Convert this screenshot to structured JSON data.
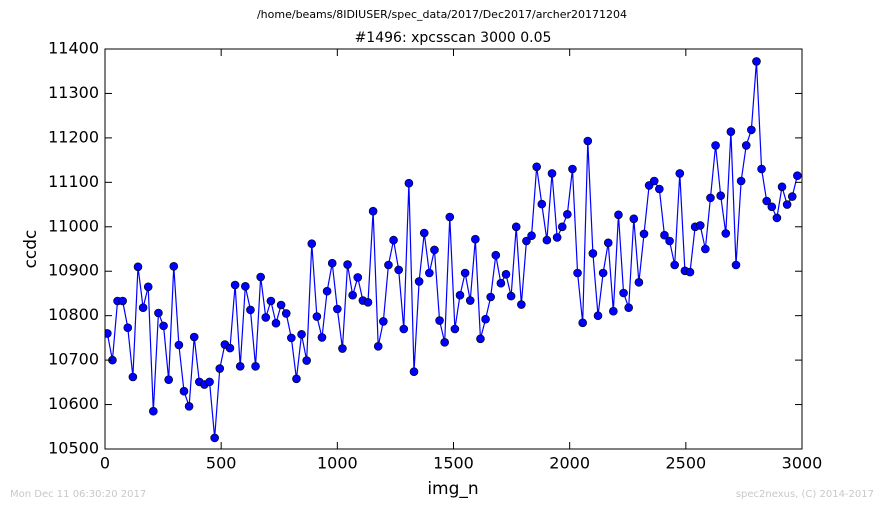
{
  "chart_data": {
    "type": "line",
    "header": "/home/beams/8IDIUSER/spec_data/2017/Dec2017/archer20171204",
    "title": "#1496: xpcsscan 3000 0.05",
    "xlabel": "img_n",
    "ylabel": "ccdc",
    "footer_left": "Mon Dec 11 06:30:20 2017",
    "footer_right": "spec2nexus, (C) 2014-2017",
    "xlim": [
      0,
      3000
    ],
    "xticks": [
      0,
      500,
      1000,
      1500,
      2000,
      2500,
      3000
    ],
    "ylim": [
      10500,
      11400
    ],
    "yticks": [
      10500,
      10600,
      10700,
      10800,
      10900,
      11000,
      11100,
      11200,
      11300,
      11400
    ],
    "x": [
      10,
      32,
      54,
      76,
      98,
      120,
      142,
      164,
      186,
      208,
      230,
      252,
      274,
      296,
      318,
      340,
      362,
      384,
      406,
      428,
      450,
      472,
      494,
      516,
      538,
      560,
      582,
      604,
      626,
      648,
      670,
      692,
      714,
      736,
      758,
      780,
      802,
      824,
      846,
      868,
      890,
      912,
      934,
      956,
      978,
      1000,
      1022,
      1044,
      1066,
      1088,
      1110,
      1132,
      1154,
      1176,
      1198,
      1220,
      1242,
      1264,
      1286,
      1308,
      1330,
      1352,
      1374,
      1396,
      1418,
      1440,
      1462,
      1484,
      1506,
      1528,
      1550,
      1572,
      1594,
      1616,
      1638,
      1660,
      1682,
      1704,
      1726,
      1748,
      1770,
      1792,
      1814,
      1836,
      1858,
      1880,
      1902,
      1924,
      1946,
      1968,
      1990,
      2012,
      2034,
      2056,
      2078,
      2100,
      2122,
      2144,
      2166,
      2188,
      2210,
      2232,
      2254,
      2276,
      2298,
      2320,
      2342,
      2364,
      2386,
      2408,
      2430,
      2452,
      2474,
      2496,
      2518,
      2540,
      2562,
      2584,
      2606,
      2628,
      2650,
      2672,
      2694,
      2716,
      2738,
      2760,
      2782,
      2804,
      2826,
      2848,
      2870,
      2892,
      2914,
      2936,
      2958,
      2980
    ],
    "series": [
      {
        "color": "#0000ff",
        "values": [
          10760,
          10700,
          10833,
          10833,
          10773,
          10662,
          10910,
          10818,
          10865,
          10585,
          10806,
          10777,
          10656,
          10911,
          10734,
          10630,
          10596,
          10752,
          10651,
          10645,
          10651,
          10525,
          10681,
          10735,
          10727,
          10869,
          10686,
          10866,
          10813,
          10686,
          10887,
          10796,
          10833,
          10783,
          10824,
          10805,
          10750,
          10658,
          10758,
          10699,
          10962,
          10798,
          10751,
          10855,
          10918,
          10815,
          10726,
          10915,
          10846,
          10886,
          10834,
          10830,
          11035,
          10731,
          10787,
          10914,
          10970,
          10903,
          10770,
          11098,
          10674,
          10877,
          10986,
          10896,
          10948,
          10789,
          10740,
          11022,
          10770,
          10846,
          10896,
          10834,
          10972,
          10748,
          10792,
          10842,
          10936,
          10873,
          10893,
          10844,
          11000,
          10825,
          10968,
          10980,
          11135,
          11051,
          10970,
          11120,
          10976,
          11000,
          11028,
          11130,
          10896,
          10784,
          11193,
          10940,
          10800,
          10896,
          10964,
          10810,
          11027,
          10851,
          10818,
          11018,
          10875,
          10984,
          11093,
          11103,
          11085,
          10981,
          10968,
          10914,
          11120,
          10901,
          10898,
          11000,
          11003,
          10950,
          11065,
          11183,
          11070,
          10985,
          11214,
          10914,
          11103,
          11183,
          11218,
          11372,
          11130,
          11058,
          11045,
          11020,
          11090,
          11050,
          11068,
          11115
        ]
      }
    ]
  }
}
